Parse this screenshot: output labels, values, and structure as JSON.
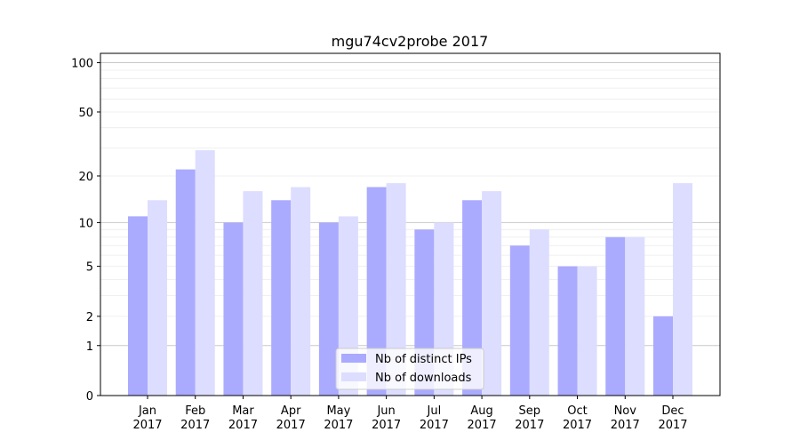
{
  "chart_data": {
    "type": "bar",
    "title": "mgu74cv2probe 2017",
    "xlabel": "",
    "ylabel": "",
    "yscale": "symlog",
    "ylim": [
      0,
      114
    ],
    "yticks": [
      0,
      1,
      2,
      5,
      10,
      20,
      50,
      100
    ],
    "grid": true,
    "legend_position": "bottom-center",
    "categories": [
      "Jan\n2017",
      "Feb\n2017",
      "Mar\n2017",
      "Apr\n2017",
      "May\n2017",
      "Jun\n2017",
      "Jul\n2017",
      "Aug\n2017",
      "Sep\n2017",
      "Oct\n2017",
      "Nov\n2017",
      "Dec\n2017"
    ],
    "series": [
      {
        "name": "Nb of distinct IPs",
        "color": "#aaaaff",
        "values": [
          11,
          22,
          10,
          14,
          10,
          17,
          9,
          14,
          7,
          5,
          8,
          2
        ]
      },
      {
        "name": "Nb of downloads",
        "color": "#ddddff",
        "values": [
          14,
          29,
          16,
          17,
          11,
          18,
          10,
          16,
          9,
          5,
          8,
          18
        ]
      }
    ]
  }
}
